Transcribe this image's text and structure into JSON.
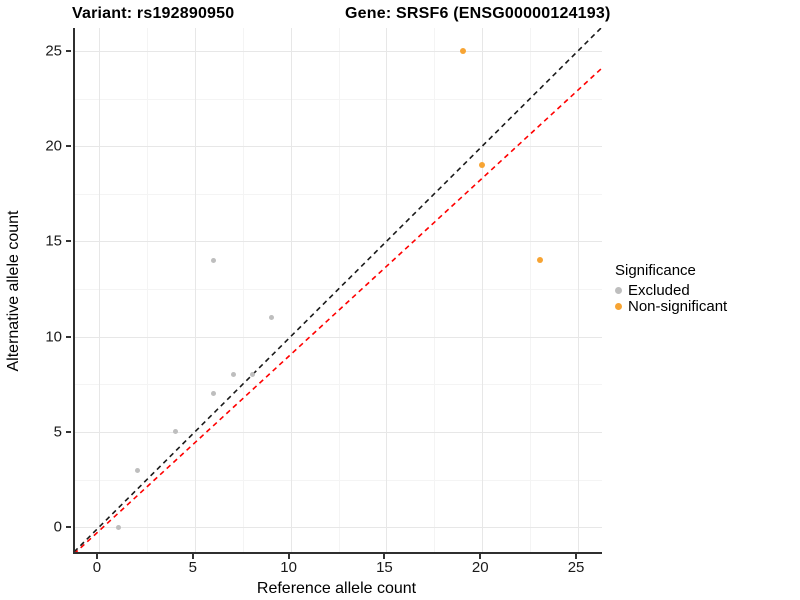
{
  "titles": {
    "left": "Variant: rs192890950",
    "right": "Gene: SRSF6 (ENSG00000124193)"
  },
  "chart_data": {
    "type": "scatter",
    "title": "Variant: rs192890950   Gene: SRSF6 (ENSG00000124193)",
    "xlabel": "Reference allele count",
    "ylabel": "Alternative allele count",
    "xlim": [
      -1.25,
      26.25
    ],
    "ylim": [
      -1.3,
      26.2
    ],
    "x_ticks": [
      0,
      5,
      10,
      15,
      20,
      25
    ],
    "y_ticks": [
      0,
      5,
      10,
      15,
      20,
      25
    ],
    "x_minor_gridlines": [
      2.5,
      7.5,
      12.5,
      17.5,
      22.5
    ],
    "y_minor_gridlines": [
      2.5,
      7.5,
      12.5,
      17.5,
      22.5
    ],
    "grid": "on",
    "series": [
      {
        "name": "Excluded",
        "color": "#bebebe",
        "marker_radius": 2.5,
        "points": [
          [
            1,
            0
          ],
          [
            2,
            3
          ],
          [
            4,
            5
          ],
          [
            6,
            7
          ],
          [
            7,
            8
          ],
          [
            8,
            8
          ],
          [
            6,
            14
          ],
          [
            9,
            11
          ]
        ]
      },
      {
        "name": "Non-significant",
        "color": "#f7a433",
        "marker_radius": 3,
        "points": [
          [
            19,
            25
          ],
          [
            20,
            19
          ],
          [
            23,
            14
          ]
        ]
      }
    ],
    "reference_lines": [
      {
        "name": "identity-line",
        "color": "#1a1a1a",
        "style": "dashed",
        "from": [
          -1.3,
          -1.3
        ],
        "to": [
          26.25,
          26.25
        ]
      },
      {
        "name": "expected-ratio-line",
        "color": "#ff0000",
        "style": "dashed",
        "from": [
          -1.3,
          -1.4
        ],
        "to": [
          26.25,
          24.1
        ]
      }
    ],
    "legend": {
      "position": "right",
      "title": "Significance",
      "items": [
        {
          "label": "Excluded",
          "color": "#bebebe"
        },
        {
          "label": "Non-significant",
          "color": "#f7a433"
        }
      ]
    }
  }
}
